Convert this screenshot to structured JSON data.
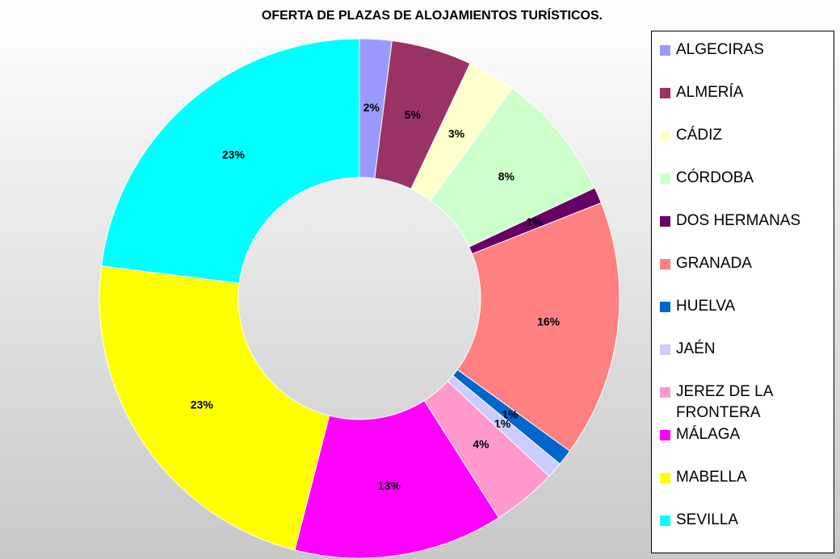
{
  "chart_data": {
    "type": "donut",
    "title": "OFERTA DE PLAZAS DE ALOJAMIENTOS TURÍSTICOS.",
    "categories": [
      "ALGECIRAS",
      "ALMERÍA",
      "CÁDIZ",
      "CÓRDOBA",
      "DOS HERMANAS",
      "GRANADA",
      "HUELVA",
      "JAÉN",
      "JEREZ DE LA FRONTERA",
      "MÁLAGA",
      "MABELLA",
      "SEVILLA"
    ],
    "values": [
      2,
      5,
      3,
      8,
      1,
      16,
      1,
      1,
      4,
      13,
      23,
      23
    ],
    "value_labels": [
      "2%",
      "5%",
      "3%",
      "8%",
      "1%",
      "16%",
      "1%",
      "1%",
      "4%",
      "13%",
      "23%",
      "23%"
    ],
    "colors": [
      "#9999ff",
      "#993366",
      "#ffffcc",
      "#ccffcc",
      "#660066",
      "#ff8080",
      "#0066cc",
      "#ccccff",
      "#ff99cc",
      "#ff00ff",
      "#ffff00",
      "#00ffff"
    ],
    "legend": "right"
  }
}
